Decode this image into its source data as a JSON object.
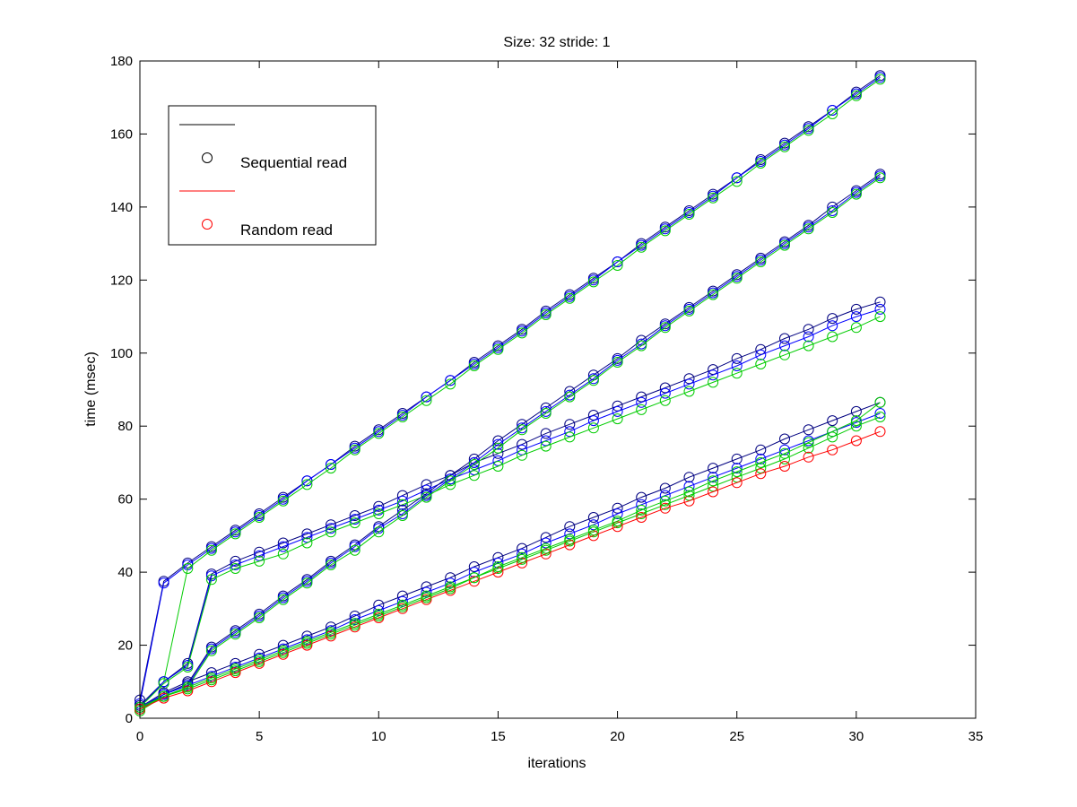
{
  "chart_data": {
    "type": "line",
    "title": "Size: 32 stride: 1",
    "xlabel": "iterations",
    "ylabel": "time (msec)",
    "xlim": [
      0,
      35
    ],
    "ylim": [
      0,
      180
    ],
    "xticks": [
      0,
      5,
      10,
      15,
      20,
      25,
      30,
      35
    ],
    "yticks": [
      0,
      20,
      40,
      60,
      80,
      100,
      120,
      140,
      160,
      180
    ],
    "grid": false,
    "legend": {
      "position": "top-left",
      "entries": [
        {
          "label": "",
          "marker": "line",
          "color": "#000000"
        },
        {
          "label": "Sequential read",
          "marker": "circle",
          "color": "#000000"
        },
        {
          "label": "",
          "marker": "line",
          "color": "#ff0000"
        },
        {
          "label": "Random read",
          "marker": "circle",
          "color": "#ff0000"
        }
      ]
    },
    "x": [
      0,
      1,
      2,
      3,
      4,
      5,
      6,
      7,
      8,
      9,
      10,
      11,
      12,
      13,
      14,
      15,
      16,
      17,
      18,
      19,
      20,
      21,
      22,
      23,
      24,
      25,
      26,
      27,
      28,
      29,
      30,
      31
    ],
    "series": [
      {
        "color": "#000080",
        "values": [
          5,
          37.5,
          42.5,
          47,
          51.5,
          56,
          60.5,
          65,
          69.5,
          74.5,
          79,
          83.5,
          88,
          92.5,
          97.5,
          102,
          106.5,
          111.5,
          116,
          120.5,
          125,
          130,
          134.5,
          139,
          143.5,
          148,
          153,
          157.5,
          162,
          166.5,
          171.5,
          176
        ]
      },
      {
        "color": "#0000ff",
        "values": [
          4,
          37,
          42,
          46.5,
          51,
          55.5,
          60,
          65,
          69.5,
          74,
          78.5,
          83,
          88,
          92.5,
          97,
          101.5,
          106,
          111,
          115.5,
          120,
          125,
          129.5,
          134,
          138.5,
          143,
          148,
          152.5,
          157,
          161.5,
          166.5,
          171,
          175.5
        ]
      },
      {
        "color": "#00cc00",
        "values": [
          3,
          10,
          41,
          46,
          50.5,
          55,
          59.5,
          64,
          68.5,
          73.5,
          78,
          82.5,
          87,
          91.5,
          96.5,
          101,
          105.5,
          110.5,
          115,
          119.5,
          124,
          129,
          133.5,
          138,
          142.5,
          147,
          152,
          156.5,
          161,
          165.5,
          170.5,
          175
        ]
      },
      {
        "color": "#000080",
        "values": [
          3.5,
          10,
          15,
          39.5,
          43,
          45.5,
          48,
          50.5,
          53,
          55.5,
          58,
          61,
          64,
          66.5,
          70,
          72.5,
          75,
          78,
          80.5,
          83,
          85.5,
          88,
          90.5,
          93,
          95.5,
          98.5,
          101,
          104,
          106.5,
          109.5,
          112,
          114
        ]
      },
      {
        "color": "#0000ff",
        "values": [
          3,
          10,
          14.5,
          39,
          42,
          44.5,
          47,
          49.5,
          52,
          54.5,
          57,
          59.5,
          62.5,
          65.5,
          68,
          70.5,
          73.5,
          76,
          78.5,
          81.5,
          84,
          86.5,
          89,
          91.5,
          94,
          96.5,
          99.5,
          102,
          104.5,
          107.5,
          110,
          112
        ]
      },
      {
        "color": "#00cc00",
        "values": [
          3,
          9.5,
          14,
          38,
          41,
          43,
          45,
          48,
          51,
          53.5,
          56,
          58.5,
          61,
          64,
          66.5,
          69,
          72,
          74.5,
          77,
          79.5,
          82,
          84.5,
          87,
          89.5,
          92,
          94.5,
          97,
          99.5,
          102,
          104.5,
          107,
          110
        ]
      },
      {
        "color": "#000080",
        "values": [
          2.5,
          6.5,
          9.5,
          19.5,
          24,
          28.5,
          33.5,
          38,
          43,
          47.5,
          52.5,
          57,
          61.5,
          66.5,
          71,
          76,
          80.5,
          85,
          89.5,
          94,
          98.5,
          103.5,
          108,
          112.5,
          117,
          121.5,
          126,
          130.5,
          135,
          140,
          144.5,
          149
        ]
      },
      {
        "color": "#0000ff",
        "values": [
          2.5,
          6.5,
          9,
          19,
          23.5,
          28,
          33,
          37.5,
          42.5,
          47,
          52,
          56,
          61,
          65.5,
          70,
          75,
          79.5,
          84,
          88.5,
          93,
          98,
          102.5,
          107.5,
          112,
          116.5,
          121,
          125.5,
          130,
          134.5,
          139,
          144,
          148.5
        ]
      },
      {
        "color": "#00cc00",
        "values": [
          2,
          6,
          8.5,
          18.5,
          23,
          27.5,
          32.5,
          37,
          42,
          46,
          51,
          55.5,
          60.5,
          65,
          69.5,
          74,
          79,
          83.5,
          88,
          92.5,
          97.5,
          102,
          107,
          111.5,
          116,
          120.5,
          125,
          129.5,
          134,
          138.5,
          143.5,
          148
        ]
      },
      {
        "color": "#000080",
        "values": [
          3,
          7,
          10,
          12.5,
          15,
          17.5,
          20,
          22.5,
          25,
          28,
          31,
          33.5,
          36,
          38.5,
          41.5,
          44,
          46.5,
          49.5,
          52.5,
          55,
          57.5,
          60.5,
          63,
          66,
          68.5,
          71,
          73.5,
          76.5,
          79,
          81.5,
          84,
          86.5
        ]
      },
      {
        "color": "#0000ff",
        "values": [
          3,
          6.5,
          9,
          11.5,
          14,
          16.5,
          19,
          21.5,
          24,
          27,
          29.5,
          32,
          34.5,
          37,
          40,
          42.5,
          45,
          48,
          50.5,
          53,
          56,
          58.5,
          61,
          63.5,
          66,
          68.5,
          71,
          73.5,
          76,
          78.5,
          81,
          83.5
        ]
      },
      {
        "color": "#00cc00",
        "values": [
          2.5,
          6,
          8,
          10.5,
          13,
          15.5,
          18,
          20.5,
          23,
          25.5,
          28,
          30.5,
          33,
          35.5,
          38.5,
          41,
          43.5,
          46,
          48.5,
          51,
          53.5,
          56,
          58.5,
          61,
          63.5,
          66,
          68.5,
          71,
          74,
          77,
          80,
          82.5
        ]
      },
      {
        "color": "#ff0000",
        "values": [
          2.5,
          5.5,
          7.5,
          10,
          12.5,
          15,
          17.5,
          20,
          22.5,
          25,
          27.5,
          30,
          32.5,
          35,
          37.5,
          40,
          42.5,
          45,
          47.5,
          50,
          52.5,
          55,
          57.5,
          59.5,
          62,
          64.5,
          67,
          69,
          71.5,
          73.5,
          76,
          78.5
        ]
      },
      {
        "color": "#00cc00",
        "values": [
          3,
          6,
          8.5,
          11,
          13.5,
          16,
          18.5,
          21,
          23.5,
          26,
          28.5,
          31,
          33.5,
          36,
          38.5,
          41.5,
          44,
          46.5,
          49,
          51.5,
          54,
          57,
          59.5,
          62,
          65,
          67.5,
          70,
          72.5,
          75.5,
          78.5,
          81.5,
          86.5
        ]
      }
    ]
  }
}
